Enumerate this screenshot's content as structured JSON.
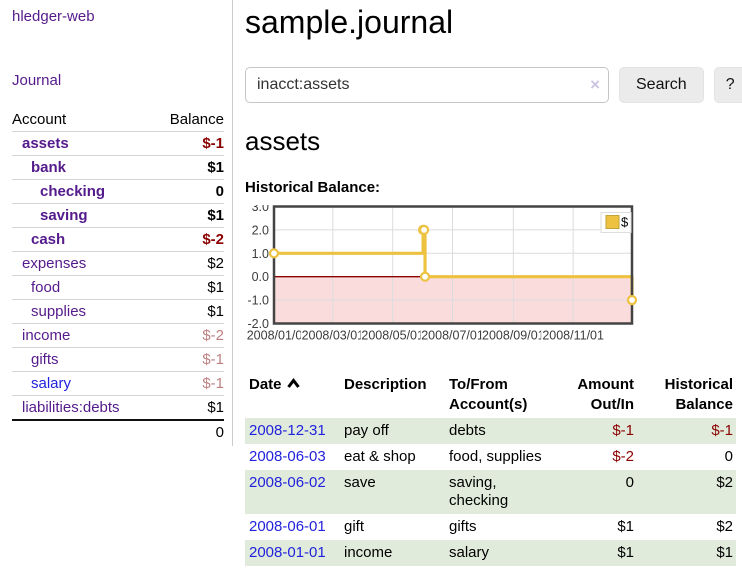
{
  "colors": {
    "link_purple": "#551a8b",
    "link_blue": "#2222dd",
    "negative_red": "#8b0000",
    "negative_muted": "#bd8181",
    "row_stripe_green": "#e0ebdb",
    "chart_series_yellow": "#edc240",
    "chart_negative_fill": "#fbdcdc",
    "chart_zero_line": "#8b0000"
  },
  "sidebar": {
    "app_title": "hledger-web",
    "nav": {
      "journal": "Journal"
    },
    "table": {
      "account_header": "Account",
      "balance_header": "Balance",
      "total": "0"
    },
    "accounts": [
      {
        "name": "assets",
        "depth": 0,
        "bold": true,
        "name_style": "purple",
        "balance": "$-1",
        "balance_style": "neg-strong"
      },
      {
        "name": "bank",
        "depth": 1,
        "bold": true,
        "name_style": "purple",
        "balance": "$1",
        "balance_style": "strong"
      },
      {
        "name": "checking",
        "depth": 2,
        "bold": true,
        "name_style": "purple",
        "balance": "0",
        "balance_style": "strong"
      },
      {
        "name": "saving",
        "depth": 2,
        "bold": true,
        "name_style": "purple",
        "balance": "$1",
        "balance_style": "strong"
      },
      {
        "name": "cash",
        "depth": 1,
        "bold": true,
        "name_style": "purple",
        "balance": "$-2",
        "balance_style": "neg-strong"
      },
      {
        "name": "expenses",
        "depth": 0,
        "bold": false,
        "name_style": "purple",
        "balance": "$2",
        "balance_style": "plain"
      },
      {
        "name": "food",
        "depth": 1,
        "bold": false,
        "name_style": "purple",
        "balance": "$1",
        "balance_style": "plain"
      },
      {
        "name": "supplies",
        "depth": 1,
        "bold": false,
        "name_style": "purple",
        "balance": "$1",
        "balance_style": "plain"
      },
      {
        "name": "income",
        "depth": 0,
        "bold": false,
        "name_style": "purple",
        "balance": "$-2",
        "balance_style": "neg-muted"
      },
      {
        "name": "gifts",
        "depth": 1,
        "bold": false,
        "name_style": "purple",
        "balance": "$-1",
        "balance_style": "neg-muted"
      },
      {
        "name": "salary",
        "depth": 1,
        "bold": false,
        "name_style": "blue",
        "balance": "$-1",
        "balance_style": "neg-muted"
      },
      {
        "name": "liabilities:debts",
        "depth": 0,
        "bold": false,
        "name_style": "purple",
        "balance": "$1",
        "balance_style": "plain"
      }
    ]
  },
  "main": {
    "title": "sample.journal",
    "search": {
      "value": "inacct:assets",
      "clear_icon": "×",
      "button_label": "Search",
      "help_label": "?"
    },
    "account_heading": "assets",
    "chart_title": "Historical Balance:"
  },
  "chart_data": {
    "type": "line",
    "step": true,
    "title": "Historical Balance",
    "x_range": [
      "2008-01-01",
      "2008-12-31"
    ],
    "ylim": [
      -2,
      3
    ],
    "ytick_labels": [
      "3.0",
      "2.0",
      "1.0",
      "0.0",
      "-1.0",
      "-2.0"
    ],
    "xtick_dates": [
      "2008-01-01",
      "2008-03-01",
      "2008-05-01",
      "2008-07-01",
      "2008-09-01",
      "2008-11-01"
    ],
    "xtick_labels": [
      "2008/01/01",
      "2008/03/01",
      "2008/05/01",
      "2008/07/01",
      "2008/09/01",
      "2008/11/01"
    ],
    "series": [
      {
        "name": "$",
        "color": "#edc240",
        "points": [
          [
            "2008-01-01",
            1
          ],
          [
            "2008-06-01",
            2
          ],
          [
            "2008-06-02",
            2
          ],
          [
            "2008-06-03",
            0
          ],
          [
            "2008-12-31",
            -1
          ]
        ]
      }
    ],
    "legend": {
      "label": "$",
      "swatch_color": "#edc240",
      "position": "top-right"
    },
    "grid": true,
    "negative_fill": "#fbdcdc",
    "zero_line_color": "#8b0000"
  },
  "register": {
    "columns": [
      {
        "label": "Date",
        "sorted": "asc"
      },
      {
        "label": "Description"
      },
      {
        "label": "To/From Account(s)"
      },
      {
        "label": "Amount Out/In",
        "align": "right"
      },
      {
        "label": "Historical Balance",
        "align": "right"
      }
    ],
    "rows": [
      {
        "date": "2008-12-31",
        "description": "pay off",
        "accounts": "debts",
        "amount": "$-1",
        "amount_negative": true,
        "balance": "$-1",
        "balance_negative": true
      },
      {
        "date": "2008-06-03",
        "description": "eat & shop",
        "accounts": "food, supplies",
        "amount": "$-2",
        "amount_negative": true,
        "balance": "0",
        "balance_negative": false
      },
      {
        "date": "2008-06-02",
        "description": "save",
        "accounts": "saving, checking",
        "amount": "0",
        "amount_negative": false,
        "balance": "$2",
        "balance_negative": false
      },
      {
        "date": "2008-06-01",
        "description": "gift",
        "accounts": "gifts",
        "amount": "$1",
        "amount_negative": false,
        "balance": "$2",
        "balance_negative": false
      },
      {
        "date": "2008-01-01",
        "description": "income",
        "accounts": "salary",
        "amount": "$1",
        "amount_negative": false,
        "balance": "$1",
        "balance_negative": false
      }
    ]
  }
}
